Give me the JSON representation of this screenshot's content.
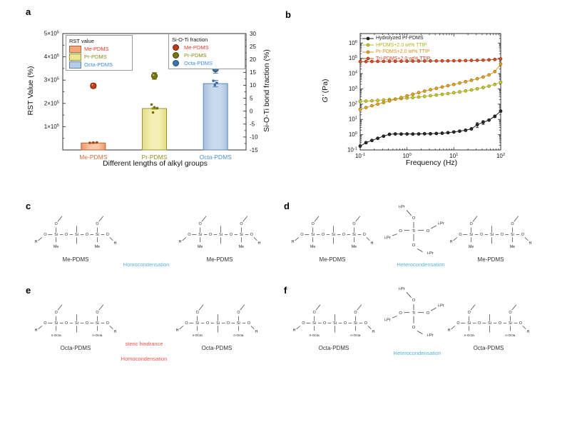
{
  "panels": {
    "a": {
      "label": "a"
    },
    "b": {
      "label": "b"
    },
    "c": {
      "label": "c"
    },
    "d": {
      "label": "d"
    },
    "e": {
      "label": "e"
    },
    "f": {
      "label": "f"
    }
  },
  "chart_data": [
    {
      "type": "bar",
      "categories": [
        "Me-PDMS",
        "Pr-PDMS",
        "Octa-PDMS"
      ],
      "category_colors": [
        "#cc6e33",
        "#8f8f1f",
        "#4a8fd2"
      ],
      "xlabel": "Different lengths of alkyl groups",
      "left_axis": {
        "label": "RST Value (%)",
        "min": 0,
        "max": 500000,
        "tick_mantissas": [
          1,
          2,
          3,
          4,
          5
        ],
        "tick_exp": "5",
        "times_sign": "×"
      },
      "right_axis": {
        "label": "Si-O-Ti bond fraction (%)",
        "min": -15,
        "max": 30,
        "step": 5
      },
      "bars": {
        "values": [
          30000,
          178000,
          285000
        ],
        "errors": [
          1500,
          3000,
          14000
        ],
        "fill_center": [
          "#f9c9ab",
          "#f4f0b4",
          "#c9daee"
        ],
        "fill_edge": [
          "#eb9668",
          "#e2dc86",
          "#a9c1dd"
        ],
        "stroke": [
          "#b86335",
          "#96962d",
          "#5f86ad"
        ]
      },
      "replicates": {
        "values": [
          [
            30500,
            31500,
            32500
          ],
          [
            195000,
            183000,
            179500,
            161000
          ],
          [
            297000,
            288000,
            279000
          ]
        ],
        "jitter": [
          [
            -5,
            0,
            5
          ],
          [
            -4,
            0,
            4,
            -2
          ],
          [
            -3,
            2,
            -1
          ]
        ],
        "colors": [
          "#a34a12",
          "#6f6f0c",
          "#3a6ea5"
        ]
      },
      "fraction_points": {
        "values": [
          9.8,
          13.6,
          16.3
        ],
        "errors": [
          0.9,
          1.3,
          1.6
        ],
        "fill": [
          "#c03a1d",
          "#77770e",
          "#3e74a8"
        ],
        "stroke": [
          "#6f1d05",
          "#45450a",
          "#1f4a75"
        ]
      }
    },
    {
      "type": "line",
      "xlabel": "Frequency (Hz)",
      "ylabel": "G' (Pa)",
      "ylabel_main": "G'",
      "ylabel_unit": "(Pa)",
      "xscale": "log",
      "yscale": "log",
      "x_tick_exps": [
        -1,
        0,
        1,
        2
      ],
      "y_tick_exps": [
        -1,
        0,
        1,
        2,
        3,
        4,
        5,
        6
      ],
      "ylim_exp": [
        -1,
        6.62
      ],
      "xlim_exp": [
        -1,
        2
      ],
      "x": [
        0.1,
        0.133,
        0.178,
        0.237,
        0.316,
        0.422,
        0.562,
        0.75,
        1,
        1.33,
        1.78,
        2.37,
        3.16,
        4.22,
        5.62,
        7.5,
        10,
        13.3,
        17.8,
        23.7,
        31.6,
        42.2,
        56.2,
        75,
        100
      ],
      "series": [
        {
          "name": "Hydrolyzed Pr-PDMS",
          "line": "#1c1c1c",
          "marker": "#2e2e2e",
          "edge": "#000000",
          "text": "#1c1c1c",
          "values": [
            0.18,
            0.3,
            0.42,
            0.58,
            0.8,
            1.05,
            1.12,
            1.1,
            1.12,
            1.1,
            1.12,
            1.15,
            1.15,
            1.2,
            1.25,
            1.35,
            1.5,
            1.7,
            1.95,
            2.4,
            4.5,
            6.5,
            9,
            16,
            35
          ],
          "errors": {
            "20": 1.6,
            "21": 1.8,
            "23": 3
          }
        },
        {
          "name": "HPDMS+2.0 wt% TTIP",
          "line": "#b9bd2a",
          "marker": "#c6ca3a",
          "edge": "#83860f",
          "text": "#b0b516",
          "values": [
            150,
            158,
            166,
            176,
            188,
            200,
            214,
            230,
            248,
            268,
            292,
            320,
            354,
            392,
            436,
            490,
            556,
            635,
            730,
            850,
            1010,
            1220,
            1510,
            1950,
            2700
          ]
        },
        {
          "name": "Pr-PDMS+2.0 wt% TTIP",
          "line": "#d99b1e",
          "marker": "#e0a52e",
          "edge": "#9c6d08",
          "text": "#d49114",
          "values": [
            45,
            60,
            78,
            100,
            128,
            163,
            210,
            270,
            348,
            445,
            565,
            710,
            880,
            1080,
            1320,
            1610,
            1960,
            2400,
            2950,
            3650,
            4600,
            6000,
            8200,
            13500,
            42000
          ]
        },
        {
          "name": "Tri-PDMS+2.0 wt% TTIP",
          "line": "#cd4a28",
          "marker": "#d4552f",
          "edge": "#8e2c10",
          "text": "#cb4323",
          "values": [
            60000,
            61000,
            62000,
            62500,
            63000,
            63500,
            64000,
            64500,
            65000,
            65500,
            66000,
            66500,
            67000,
            67500,
            68000,
            68500,
            69000,
            70000,
            71000,
            72500,
            74000,
            76000,
            79000,
            84000,
            92000
          ]
        }
      ]
    }
  ],
  "panel_a": {
    "legend_left": {
      "title": "RST value",
      "items": [
        {
          "label": "Me-PDMS",
          "swatch": "#f3a87c",
          "swatch_edge": "#b86335",
          "color": "#e03c2a"
        },
        {
          "label": "Pr-PDMS",
          "swatch": "#ece690",
          "swatch_edge": "#96962d",
          "color": "#8a8a1a"
        },
        {
          "label": "Octa-PDMS",
          "swatch": "#b7cde7",
          "swatch_edge": "#5f86ad",
          "color": "#3d8de0"
        }
      ]
    },
    "legend_right": {
      "title": "Si-O-Ti fraction",
      "items": [
        {
          "label": "Me-PDMS",
          "dot": "#c03a1d",
          "dot_edge": "#6f1d05",
          "color": "#e03c2a"
        },
        {
          "label": "Pr-PDMS",
          "dot": "#77770e",
          "dot_edge": "#45450a",
          "color": "#8a8a1a"
        },
        {
          "label": "Octa-PDMS",
          "dot": "#3e74a8",
          "dot_edge": "#1f4a75",
          "color": "#3d8de0"
        }
      ]
    }
  },
  "mol_text": {
    "H": "H",
    "O": "O",
    "Si": "Si",
    "Ti": "Ti",
    "iPr": "i-Pr",
    "Me": "Me",
    "nOcta": "n-Octa"
  },
  "panel_c": {
    "names": [
      "Me-PDMS",
      "Me-PDMS"
    ],
    "sub": "Me",
    "annotations": [
      {
        "text": "Homocondensation",
        "color": "#56b4e9"
      }
    ]
  },
  "panel_d": {
    "names": [
      "Me-PDMS",
      "Me-PDMS"
    ],
    "sub": "Me",
    "annotations": [
      {
        "text": "Heterocondensation",
        "color": "#56b4e9"
      }
    ]
  },
  "panel_e": {
    "names": [
      "Octa-PDMS",
      "Octa-PDMS"
    ],
    "sub": "nOcta",
    "annotations": [
      {
        "text": "steric hindrance",
        "color": "#f2524a"
      },
      {
        "text": "Homocondensation",
        "color": "#f2524a"
      }
    ]
  },
  "panel_f": {
    "names": [
      "Octa-PDMS",
      "Octa-PDMS"
    ],
    "sub": "nOcta",
    "annotations": [
      {
        "text": "Heterocondensation",
        "color": "#56b4e9"
      }
    ]
  }
}
